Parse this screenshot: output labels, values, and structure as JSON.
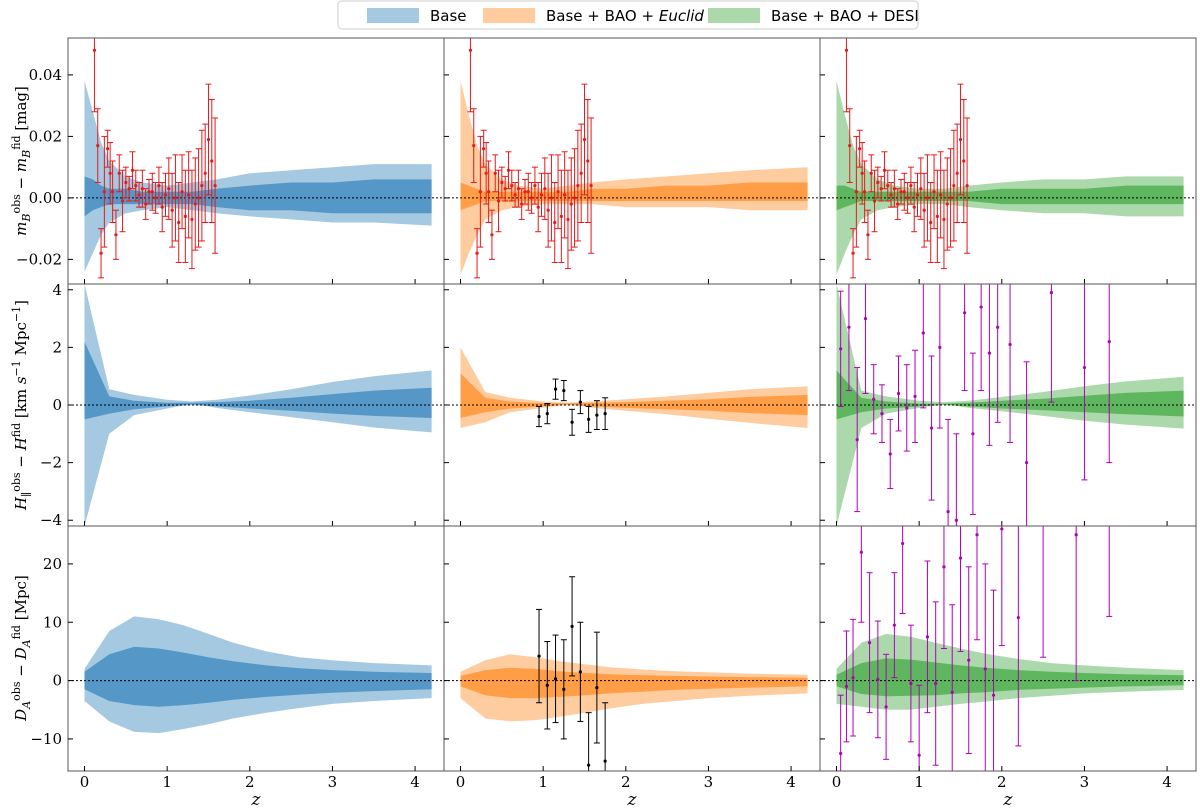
{
  "legend": {
    "entries": [
      {
        "name": "Base",
        "color": "#1f77b4"
      },
      {
        "name": "Base + BAO + Euclid",
        "prefix": "Base + BAO + ",
        "italic": "Euclid",
        "color": "#ff7f0e"
      },
      {
        "name": "Base + BAO + DESI",
        "color": "#2ca02c"
      }
    ]
  },
  "colors": {
    "base": "#1f77b4",
    "euclid": "#ff7f0e",
    "desi": "#2ca02c",
    "sn_points": "#e41a1c",
    "euclid_points": "#000000",
    "desi_points": "#b000b5"
  },
  "chart_data": {
    "type": "area",
    "xlabel": "z",
    "xlim": [
      -0.2,
      4.35
    ],
    "xticks": [
      0,
      1,
      2,
      3,
      4
    ],
    "columns": [
      "Base",
      "Base + BAO + Euclid",
      "Base + BAO + DESI"
    ],
    "rows": [
      {
        "id": "mB",
        "ylabel": "m_B^obs - m_B^fid [mag]",
        "ylim": [
          -0.028,
          0.052
        ],
        "yticks": [
          -0.02,
          0.0,
          0.02,
          0.04
        ],
        "ytick_labels": [
          "−0.02",
          "0.00",
          "0.02",
          "0.04"
        ],
        "z": [
          0.0,
          0.1,
          0.2,
          0.3,
          0.5,
          0.7,
          1.0,
          1.3,
          1.6,
          2.0,
          2.5,
          3.0,
          3.5,
          4.2
        ],
        "bands": {
          "Base": {
            "s1_lo": [
              -0.006,
              -0.004,
              -0.003,
              -0.002,
              -0.002,
              -0.002,
              -0.002,
              -0.002,
              -0.003,
              -0.004,
              -0.004,
              -0.005,
              -0.005,
              -0.005
            ],
            "s1_hi": [
              0.007,
              0.006,
              0.004,
              0.003,
              0.003,
              0.002,
              0.002,
              0.002,
              0.003,
              0.004,
              0.005,
              0.005,
              0.006,
              0.006
            ],
            "s2_lo": [
              -0.024,
              -0.018,
              -0.012,
              -0.008,
              -0.005,
              -0.004,
              -0.003,
              -0.004,
              -0.005,
              -0.006,
              -0.007,
              -0.008,
              -0.008,
              -0.009
            ],
            "s2_hi": [
              0.038,
              0.028,
              0.018,
              0.012,
              0.007,
              0.005,
              0.004,
              0.005,
              0.006,
              0.008,
              0.009,
              0.01,
              0.011,
              0.011
            ]
          },
          "Base + BAO + Euclid": {
            "s1_lo": [
              -0.004,
              -0.003,
              -0.002,
              -0.001,
              -0.001,
              -0.001,
              -0.001,
              -0.001,
              -0.001,
              -0.001,
              -0.001,
              -0.001,
              -0.001,
              -0.001
            ],
            "s1_hi": [
              0.005,
              0.004,
              0.003,
              0.002,
              0.002,
              0.002,
              0.002,
              0.002,
              0.003,
              0.003,
              0.004,
              0.004,
              0.005,
              0.005
            ],
            "s2_lo": [
              -0.025,
              -0.018,
              -0.012,
              -0.007,
              -0.004,
              -0.003,
              -0.002,
              -0.002,
              -0.002,
              -0.003,
              -0.003,
              -0.003,
              -0.004,
              -0.004
            ],
            "s2_hi": [
              0.038,
              0.027,
              0.017,
              0.011,
              0.006,
              0.004,
              0.003,
              0.004,
              0.005,
              0.006,
              0.007,
              0.008,
              0.009,
              0.01
            ]
          },
          "Base + BAO + DESI": {
            "s1_lo": [
              -0.004,
              -0.003,
              -0.002,
              -0.001,
              -0.001,
              -0.001,
              -0.001,
              -0.001,
              -0.001,
              -0.002,
              -0.002,
              -0.002,
              -0.002,
              -0.002
            ],
            "s1_hi": [
              0.004,
              0.004,
              0.003,
              0.002,
              0.002,
              0.002,
              0.002,
              0.002,
              0.002,
              0.003,
              0.003,
              0.003,
              0.004,
              0.004
            ],
            "s2_lo": [
              -0.025,
              -0.018,
              -0.012,
              -0.007,
              -0.004,
              -0.003,
              -0.002,
              -0.002,
              -0.003,
              -0.004,
              -0.005,
              -0.005,
              -0.006,
              -0.006
            ],
            "s2_hi": [
              0.038,
              0.027,
              0.017,
              0.011,
              0.006,
              0.004,
              0.003,
              0.003,
              0.004,
              0.005,
              0.006,
              0.006,
              0.007,
              0.007
            ]
          }
        },
        "points": {
          "color_key": "sn_points",
          "all_columns": true,
          "z": [
            0.12,
            0.16,
            0.2,
            0.24,
            0.28,
            0.31,
            0.34,
            0.38,
            0.42,
            0.46,
            0.5,
            0.54,
            0.58,
            0.62,
            0.66,
            0.7,
            0.74,
            0.78,
            0.82,
            0.86,
            0.9,
            0.94,
            0.98,
            1.02,
            1.06,
            1.1,
            1.14,
            1.18,
            1.22,
            1.26,
            1.3,
            1.34,
            1.38,
            1.42,
            1.46,
            1.5,
            1.54,
            1.58
          ],
          "y": [
            0.048,
            0.017,
            -0.018,
            0.002,
            0.016,
            0.008,
            0.002,
            -0.012,
            0.008,
            -0.001,
            0.005,
            0.003,
            0.009,
            0.004,
            0.001,
            0.003,
            -0.002,
            0.002,
            0.002,
            0.0,
            0.004,
            -0.003,
            0.001,
            0.003,
            -0.004,
            0.0,
            -0.008,
            0.002,
            -0.006,
            0.001,
            -0.007,
            -0.002,
            0.0,
            0.004,
            0.008,
            0.019,
            0.012,
            0.004
          ],
          "err": [
            0.02,
            0.012,
            0.008,
            0.018,
            0.006,
            0.01,
            0.01,
            0.008,
            0.006,
            0.01,
            0.005,
            0.004,
            0.006,
            0.005,
            0.004,
            0.006,
            0.005,
            0.004,
            0.006,
            0.005,
            0.006,
            0.008,
            0.007,
            0.01,
            0.012,
            0.014,
            0.013,
            0.012,
            0.015,
            0.014,
            0.016,
            0.015,
            0.016,
            0.018,
            0.016,
            0.018,
            0.02,
            0.022
          ]
        }
      },
      {
        "id": "H",
        "ylabel": "H_||^obs - H^fid [km s^-1 Mpc^-1]",
        "ylim": [
          -4.2,
          4.2
        ],
        "yticks": [
          -4,
          -2,
          0,
          2,
          4
        ],
        "ytick_labels": [
          "−4",
          "−2",
          "0",
          "2",
          "4"
        ],
        "z": [
          0.0,
          0.3,
          0.6,
          1.0,
          1.3,
          1.6,
          2.0,
          2.5,
          3.0,
          3.5,
          4.2
        ],
        "bands": {
          "Base": {
            "s1_lo": [
              -0.5,
              -0.3,
              -0.15,
              -0.05,
              0.0,
              -0.05,
              -0.12,
              -0.2,
              -0.3,
              -0.38,
              -0.45
            ],
            "s1_hi": [
              2.2,
              0.3,
              0.15,
              0.08,
              0.08,
              0.1,
              0.15,
              0.25,
              0.38,
              0.5,
              0.6
            ],
            "s2_lo": [
              -4.2,
              -1.0,
              -0.35,
              -0.12,
              0.05,
              -0.1,
              -0.25,
              -0.42,
              -0.6,
              -0.78,
              -0.95
            ],
            "s2_hi": [
              4.2,
              0.55,
              0.35,
              0.18,
              0.12,
              0.18,
              0.33,
              0.55,
              0.8,
              1.0,
              1.2
            ]
          },
          "Base + BAO + Euclid": {
            "s1_lo": [
              -0.45,
              -0.25,
              -0.12,
              -0.05,
              0.0,
              -0.05,
              -0.1,
              -0.15,
              -0.2,
              -0.28,
              -0.35
            ],
            "s1_hi": [
              1.1,
              0.25,
              0.12,
              0.06,
              0.06,
              0.08,
              0.1,
              0.15,
              0.2,
              0.28,
              0.35
            ],
            "s2_lo": [
              -0.8,
              -0.6,
              -0.25,
              -0.1,
              0.03,
              -0.1,
              -0.2,
              -0.32,
              -0.48,
              -0.62,
              -0.8
            ],
            "s2_hi": [
              2.0,
              0.45,
              0.25,
              0.12,
              0.08,
              0.12,
              0.2,
              0.3,
              0.42,
              0.55,
              0.65
            ]
          },
          "Base + BAO + DESI": {
            "s1_lo": [
              -0.5,
              -0.25,
              -0.12,
              -0.05,
              0.0,
              -0.05,
              -0.12,
              -0.18,
              -0.25,
              -0.32,
              -0.4
            ],
            "s1_hi": [
              1.2,
              0.25,
              0.12,
              0.05,
              0.05,
              0.08,
              0.15,
              0.22,
              0.32,
              0.42,
              0.5
            ],
            "s2_lo": [
              -4.2,
              -0.8,
              -0.3,
              -0.1,
              0.03,
              -0.1,
              -0.22,
              -0.38,
              -0.55,
              -0.68,
              -0.82
            ],
            "s2_hi": [
              4.2,
              0.5,
              0.3,
              0.15,
              0.1,
              0.15,
              0.28,
              0.45,
              0.65,
              0.82,
              0.98
            ]
          }
        },
        "points_euclid": {
          "color_key": "euclid_points",
          "column": 1,
          "z": [
            0.95,
            1.05,
            1.15,
            1.25,
            1.35,
            1.45,
            1.55,
            1.65,
            1.75
          ],
          "y": [
            -0.4,
            -0.3,
            0.55,
            0.5,
            -0.6,
            0.1,
            -0.5,
            -0.35,
            -0.3
          ],
          "err": [
            0.35,
            0.35,
            0.35,
            0.35,
            0.45,
            0.4,
            0.45,
            0.5,
            0.55
          ]
        },
        "points_desi": {
          "color_key": "desi_points",
          "column": 2,
          "z": [
            0.05,
            0.15,
            0.25,
            0.35,
            0.45,
            0.55,
            0.65,
            0.75,
            0.85,
            0.95,
            1.05,
            1.15,
            1.25,
            1.35,
            1.45,
            1.55,
            1.65,
            1.75,
            1.85,
            1.95,
            2.1,
            2.3,
            2.6,
            3.0,
            3.3
          ],
          "y": [
            1.95,
            2.7,
            -1.2,
            3.0,
            0.2,
            -0.3,
            -1.7,
            0.4,
            -0.1,
            0.3,
            2.5,
            -0.8,
            2.0,
            -3.7,
            -4.0,
            3.2,
            -1.0,
            3.4,
            1.8,
            2.7,
            2.1,
            -2.0,
            3.9,
            1.3,
            2.2
          ],
          "err": [
            2.0,
            2.2,
            2.5,
            2.6,
            1.2,
            1.0,
            1.2,
            1.3,
            1.5,
            1.6,
            2.6,
            2.5,
            2.8,
            3.2,
            3.0,
            2.7,
            2.8,
            2.9,
            3.2,
            3.3,
            3.4,
            3.5,
            3.8,
            3.9,
            4.2
          ]
        }
      },
      {
        "id": "DA",
        "ylabel": "D_A^obs - D_A^fid [Mpc]",
        "ylim": [
          -15.5,
          26.5
        ],
        "yticks": [
          -10,
          0,
          10,
          20
        ],
        "ytick_labels": [
          "−10",
          "0",
          "10",
          "20"
        ],
        "z": [
          0.0,
          0.3,
          0.6,
          0.9,
          1.2,
          1.5,
          1.8,
          2.2,
          2.6,
          3.0,
          3.5,
          4.2
        ],
        "bands": {
          "Base": {
            "s1_lo": [
              -1.5,
              -3.5,
              -4.2,
              -4.5,
              -4.2,
              -3.8,
              -3.3,
              -2.8,
              -2.4,
              -2.1,
              -1.8,
              -1.5
            ],
            "s1_hi": [
              1.5,
              4.5,
              5.8,
              5.5,
              4.8,
              4.0,
              3.3,
              2.6,
              2.1,
              1.8,
              1.5,
              1.3
            ],
            "s2_lo": [
              -3.5,
              -7.0,
              -8.8,
              -9.0,
              -8.3,
              -7.5,
              -6.5,
              -5.5,
              -4.7,
              -4.0,
              -3.5,
              -3.0
            ],
            "s2_hi": [
              2.0,
              8.5,
              11.0,
              10.5,
              9.5,
              8.0,
              6.5,
              5.0,
              4.0,
              3.5,
              3.0,
              2.6
            ]
          },
          "Base + BAO + Euclid": {
            "s1_lo": [
              -1.0,
              -2.5,
              -3.0,
              -3.0,
              -2.8,
              -2.5,
              -2.2,
              -1.9,
              -1.6,
              -1.4,
              -1.2,
              -1.0
            ],
            "s1_hi": [
              0.8,
              1.8,
              2.2,
              2.0,
              1.6,
              1.3,
              1.1,
              0.9,
              0.8,
              0.7,
              0.6,
              0.5
            ],
            "s2_lo": [
              -3.0,
              -6.5,
              -7.0,
              -6.8,
              -6.2,
              -5.5,
              -4.8,
              -4.0,
              -3.5,
              -3.0,
              -2.6,
              -2.2
            ],
            "s2_hi": [
              1.5,
              3.5,
              4.5,
              4.0,
              3.3,
              2.8,
              2.3,
              1.9,
              1.6,
              1.4,
              1.2,
              1.0
            ]
          },
          "Base + BAO + DESI": {
            "s1_lo": [
              -1.0,
              -2.3,
              -2.7,
              -2.6,
              -2.5,
              -2.2,
              -2.0,
              -1.6,
              -1.4,
              -1.2,
              -1.0,
              -0.8
            ],
            "s1_hi": [
              1.0,
              3.0,
              3.8,
              3.6,
              3.1,
              2.6,
              2.2,
              1.8,
              1.5,
              1.3,
              1.1,
              0.9
            ],
            "s2_lo": [
              -4.0,
              -4.5,
              -5.0,
              -5.0,
              -4.5,
              -4.0,
              -3.6,
              -3.0,
              -2.6,
              -2.2,
              -1.9,
              -1.6
            ],
            "s2_hi": [
              2.0,
              6.5,
              8.0,
              7.5,
              6.5,
              5.5,
              4.6,
              3.7,
              3.0,
              2.6,
              2.2,
              1.8
            ]
          }
        },
        "points_euclid": {
          "color_key": "euclid_points",
          "column": 1,
          "z": [
            0.95,
            1.05,
            1.15,
            1.25,
            1.35,
            1.45,
            1.55,
            1.65,
            1.75
          ],
          "y": [
            4.2,
            -0.8,
            0.3,
            -1.5,
            9.3,
            1.5,
            -14.5,
            -1.2,
            -13.8
          ],
          "err": [
            8.0,
            7.5,
            7.5,
            8.5,
            8.5,
            8.5,
            9.0,
            9.5,
            10.0
          ]
        },
        "points_desi": {
          "color_key": "desi_points",
          "column": 2,
          "z": [
            0.05,
            0.12,
            0.2,
            0.3,
            0.4,
            0.5,
            0.6,
            0.7,
            0.8,
            0.9,
            1.0,
            1.1,
            1.2,
            1.3,
            1.4,
            1.5,
            1.6,
            1.7,
            1.8,
            1.9,
            2.0,
            2.2,
            2.5,
            2.9,
            3.3
          ],
          "y": [
            -12.5,
            -1.0,
            0.5,
            22.0,
            6.5,
            0.2,
            -4.5,
            9.5,
            23.5,
            -0.5,
            -12.8,
            7.5,
            -0.5,
            19.5,
            -2.0,
            21.0,
            3.5,
            25.0,
            2.0,
            -2.5,
            26.0,
            10.8,
            28.0,
            25.0,
            29.0
          ],
          "err": [
            10.0,
            9.5,
            10.0,
            12.0,
            12.0,
            10.0,
            9.0,
            9.0,
            12.0,
            10.0,
            12.0,
            13.0,
            14.0,
            14.0,
            15.0,
            16.0,
            16.0,
            18.0,
            18.0,
            18.0,
            20.0,
            22.0,
            24.0,
            25.0,
            18.0
          ]
        }
      }
    ]
  }
}
